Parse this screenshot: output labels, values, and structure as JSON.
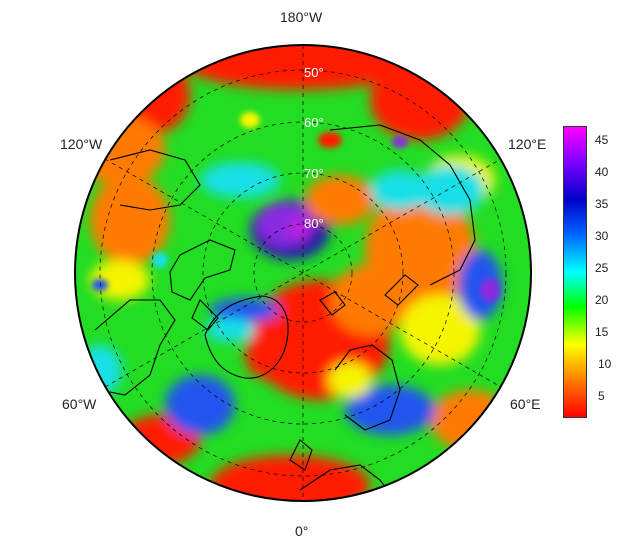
{
  "map": {
    "projection": "north polar stereographic",
    "longitude_labels": {
      "top": "180°W",
      "upper_left": "120°W",
      "upper_right": "120°E",
      "lower_left": "60°W",
      "lower_right": "60°E",
      "bottom": "0°"
    },
    "latitude_labels": [
      "50°",
      "60°",
      "70°",
      "80°"
    ]
  },
  "colorbar": {
    "tick_labels": [
      "45",
      "40",
      "35",
      "30",
      "25",
      "20",
      "15",
      "10",
      "5"
    ],
    "range": [
      1,
      47
    ],
    "colors": [
      "#ff0000",
      "#ff8000",
      "#ffff00",
      "#00ff00",
      "#00ffff",
      "#0064ff",
      "#0000c8",
      "#8000ff",
      "#ff00ff"
    ]
  },
  "colors": {
    "red": "#ff1a00",
    "orange": "#ff7a00",
    "yellow": "#f5f500",
    "green": "#22dd22",
    "cyan": "#18e0e6",
    "blue": "#2255ee",
    "navy": "#1a1aa8",
    "purple": "#8a2be2",
    "magenta": "#c020e0"
  }
}
